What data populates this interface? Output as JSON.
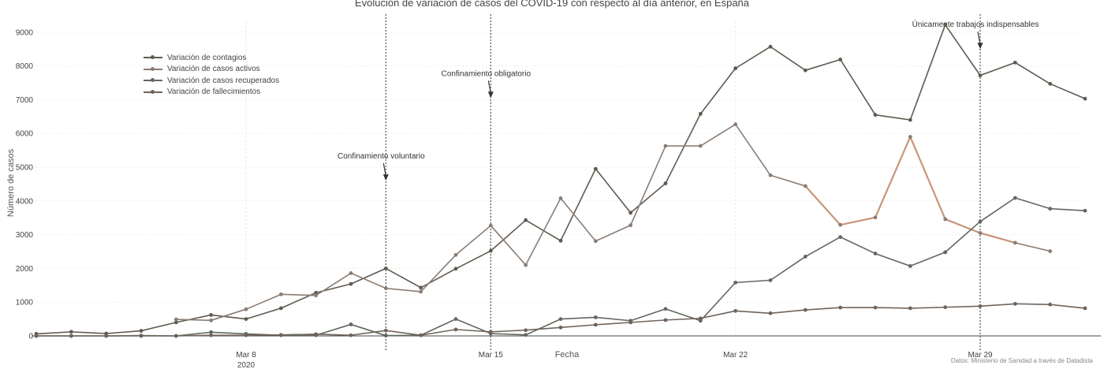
{
  "chart_data": {
    "type": "line",
    "title": "Evolución de variacion de casos del COVID-19 con respecto al día anterior, en España",
    "xlabel": "Fecha",
    "ylabel": "Número de casos",
    "x_range": [
      "2020-03-02",
      "2020-04-01"
    ],
    "ylim": [
      0,
      9300
    ],
    "y_ticks": [
      0,
      1000,
      2000,
      3000,
      4000,
      5000,
      6000,
      7000,
      8000,
      9000
    ],
    "x_ticks": [
      {
        "date": "2020-03-08",
        "label": "Mar 8",
        "sublabel": "2020"
      },
      {
        "date": "2020-03-15",
        "label": "Mar 15",
        "sublabel": ""
      },
      {
        "date": "2020-03-22",
        "label": "Mar 22",
        "sublabel": ""
      },
      {
        "date": "2020-03-29",
        "label": "Mar 29",
        "sublabel": ""
      }
    ],
    "grid": true,
    "legend_position": "top-left",
    "series": [
      {
        "name": "Variación de contagios",
        "color": "#5f5a50",
        "points": [
          [
            "2020-03-02",
            60
          ],
          [
            "2020-03-03",
            120
          ],
          [
            "2020-03-04",
            70
          ],
          [
            "2020-03-05",
            150
          ],
          [
            "2020-03-06",
            400
          ],
          [
            "2020-03-07",
            620
          ],
          [
            "2020-03-08",
            500
          ],
          [
            "2020-03-09",
            820
          ],
          [
            "2020-03-10",
            1280
          ],
          [
            "2020-03-11",
            1540
          ],
          [
            "2020-03-12",
            2000
          ],
          [
            "2020-03-13",
            1430
          ],
          [
            "2020-03-14",
            1990
          ],
          [
            "2020-03-15",
            2520
          ],
          [
            "2020-03-16",
            3430
          ],
          [
            "2020-03-17",
            2820
          ],
          [
            "2020-03-18",
            4950
          ],
          [
            "2020-03-19",
            3650
          ],
          [
            "2020-03-20",
            4520
          ],
          [
            "2020-03-21",
            6580
          ],
          [
            "2020-03-22",
            7930
          ],
          [
            "2020-03-23",
            8570
          ],
          [
            "2020-03-24",
            7870
          ],
          [
            "2020-03-25",
            8190
          ],
          [
            "2020-03-26",
            6550
          ],
          [
            "2020-03-27",
            6400
          ],
          [
            "2020-03-28",
            9220
          ],
          [
            "2020-03-29",
            7720
          ],
          [
            "2020-03-30",
            8100
          ],
          [
            "2020-03-31",
            7470
          ],
          [
            "2020-04-01",
            7030
          ]
        ]
      },
      {
        "name": "Variación de casos activos",
        "color": "#8a7d75",
        "highlight_color": "#c9957a",
        "highlight_range": [
          "2020-03-24",
          "2020-03-30"
        ],
        "points": [
          [
            "2020-03-06",
            490
          ],
          [
            "2020-03-07",
            460
          ],
          [
            "2020-03-08",
            790
          ],
          [
            "2020-03-09",
            1230
          ],
          [
            "2020-03-10",
            1200
          ],
          [
            "2020-03-11",
            1860
          ],
          [
            "2020-03-12",
            1410
          ],
          [
            "2020-03-13",
            1310
          ],
          [
            "2020-03-14",
            2400
          ],
          [
            "2020-03-15",
            3270
          ],
          [
            "2020-03-16",
            2100
          ],
          [
            "2020-03-17",
            4080
          ],
          [
            "2020-03-18",
            2810
          ],
          [
            "2020-03-19",
            3280
          ],
          [
            "2020-03-20",
            5630
          ],
          [
            "2020-03-21",
            5630
          ],
          [
            "2020-03-22",
            6270
          ],
          [
            "2020-03-23",
            4760
          ],
          [
            "2020-03-24",
            4440
          ],
          [
            "2020-03-25",
            3290
          ],
          [
            "2020-03-26",
            3510
          ],
          [
            "2020-03-27",
            5900
          ],
          [
            "2020-03-28",
            3460
          ],
          [
            "2020-03-29",
            3050
          ],
          [
            "2020-03-30",
            2760
          ],
          [
            "2020-03-31",
            2510
          ]
        ]
      },
      {
        "name": "Variación de casos recuperados",
        "color": "#62685e",
        "points": [
          [
            "2020-03-02",
            0
          ],
          [
            "2020-03-03",
            0
          ],
          [
            "2020-03-04",
            0
          ],
          [
            "2020-03-05",
            10
          ],
          [
            "2020-03-06",
            0
          ],
          [
            "2020-03-07",
            110
          ],
          [
            "2020-03-08",
            60
          ],
          [
            "2020-03-09",
            20
          ],
          [
            "2020-03-10",
            20
          ],
          [
            "2020-03-11",
            340
          ],
          [
            "2020-03-12",
            10
          ],
          [
            "2020-03-13",
            20
          ],
          [
            "2020-03-14",
            500
          ],
          [
            "2020-03-15",
            70
          ],
          [
            "2020-03-16",
            30
          ],
          [
            "2020-03-17",
            500
          ],
          [
            "2020-03-18",
            550
          ],
          [
            "2020-03-19",
            450
          ],
          [
            "2020-03-20",
            800
          ],
          [
            "2020-03-21",
            450
          ],
          [
            "2020-03-22",
            1580
          ],
          [
            "2020-03-23",
            1650
          ],
          [
            "2020-03-24",
            2350
          ],
          [
            "2020-03-25",
            2930
          ],
          [
            "2020-03-26",
            2440
          ],
          [
            "2020-03-27",
            2070
          ],
          [
            "2020-03-28",
            2480
          ],
          [
            "2020-03-29",
            3390
          ],
          [
            "2020-03-30",
            4090
          ],
          [
            "2020-03-31",
            3770
          ],
          [
            "2020-04-01",
            3710
          ]
        ]
      },
      {
        "name": "Variación de fallecimientos",
        "color": "#6f645c",
        "points": [
          [
            "2020-03-02",
            0
          ],
          [
            "2020-03-03",
            0
          ],
          [
            "2020-03-04",
            0
          ],
          [
            "2020-03-05",
            0
          ],
          [
            "2020-03-06",
            0
          ],
          [
            "2020-03-07",
            20
          ],
          [
            "2020-03-08",
            20
          ],
          [
            "2020-03-09",
            30
          ],
          [
            "2020-03-10",
            50
          ],
          [
            "2020-03-11",
            20
          ],
          [
            "2020-03-12",
            160
          ],
          [
            "2020-03-13",
            20
          ],
          [
            "2020-03-14",
            190
          ],
          [
            "2020-03-15",
            120
          ],
          [
            "2020-03-16",
            170
          ],
          [
            "2020-03-17",
            250
          ],
          [
            "2020-03-18",
            330
          ],
          [
            "2020-03-19",
            400
          ],
          [
            "2020-03-20",
            470
          ],
          [
            "2020-03-21",
            520
          ],
          [
            "2020-03-22",
            740
          ],
          [
            "2020-03-23",
            670
          ],
          [
            "2020-03-24",
            770
          ],
          [
            "2020-03-25",
            840
          ],
          [
            "2020-03-26",
            840
          ],
          [
            "2020-03-27",
            820
          ],
          [
            "2020-03-28",
            850
          ],
          [
            "2020-03-29",
            880
          ],
          [
            "2020-03-30",
            950
          ],
          [
            "2020-03-31",
            930
          ],
          [
            "2020-04-01",
            820
          ]
        ]
      }
    ],
    "vertical_lines": [
      {
        "date": "2020-03-12",
        "label": "Confinamiento voluntario",
        "arrow_y": 4600
      },
      {
        "date": "2020-03-15",
        "label": "Confinamiento obligatorio",
        "arrow_y": 7050
      },
      {
        "date": "2020-03-29",
        "label": "Únicamente trabajos indispensables",
        "arrow_y": 8500
      }
    ],
    "source_note": "Datos: Ministerio de Sanidad a través de Datadista"
  }
}
